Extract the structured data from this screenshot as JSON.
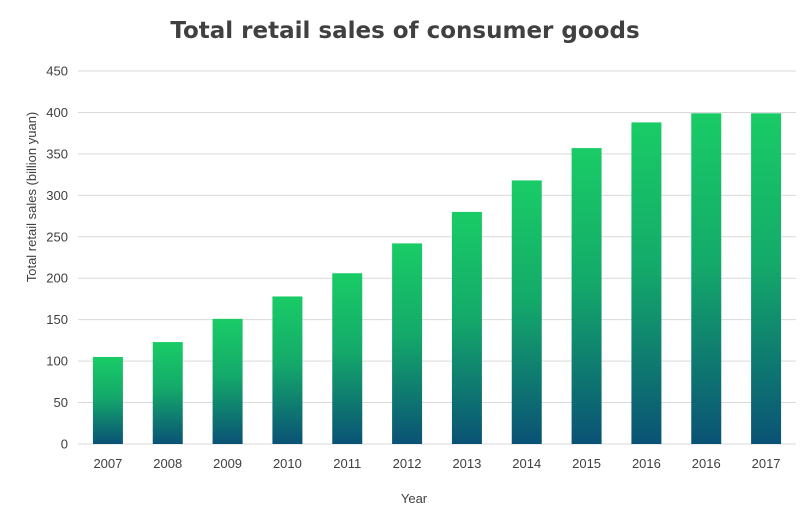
{
  "chart_data": {
    "type": "bar",
    "title": "Total retail sales of consumer goods",
    "xlabel": "Year",
    "ylabel": "Total retail sales  (billion yuan)",
    "categories": [
      "2007",
      "2008",
      "2009",
      "2010",
      "2011",
      "2012",
      "2013",
      "2014",
      "2015",
      "2016",
      "2016",
      "2017"
    ],
    "values": [
      105,
      123,
      151,
      178,
      206,
      242,
      280,
      318,
      357,
      388,
      399,
      399
    ],
    "ylim": [
      0,
      450
    ],
    "yticks": [
      0,
      50,
      100,
      150,
      200,
      250,
      300,
      350,
      400,
      450
    ],
    "grid": true,
    "legend": "none",
    "colors": {
      "bar_top": "#19cc66",
      "bar_bottom": "#0a5275",
      "grid": "#d9d9d9",
      "text": "#404040"
    }
  }
}
